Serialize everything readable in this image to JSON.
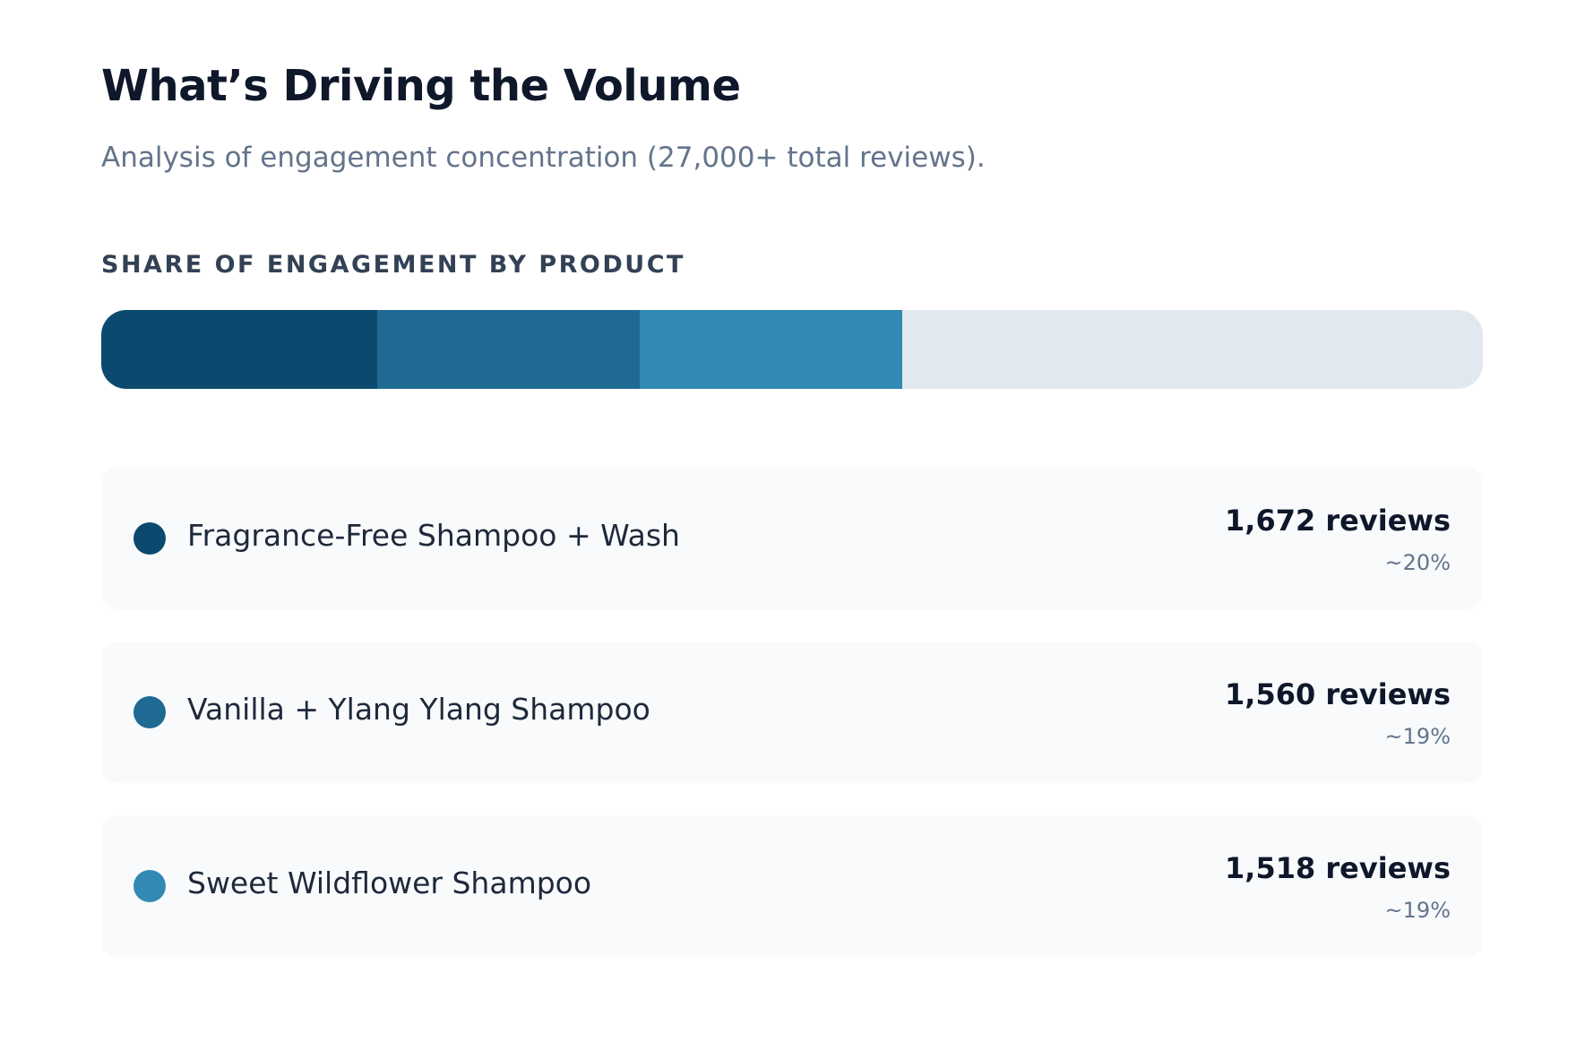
{
  "header": {
    "title": "What’s Driving the Volume",
    "subtitle": "Analysis of engagement concentration (27,000+ total reviews)."
  },
  "chart_data": {
    "type": "stacked-bar",
    "title": "SHARE OF ENGAGEMENT BY PRODUCT",
    "xlim": [
      0,
      100
    ],
    "track_color": "#e2e8f0",
    "items": [
      {
        "name": "Fragrance-Free Shampoo + Wash",
        "color": "#0b4a6e",
        "share": 20,
        "share_label": "~20%",
        "reviews_label": "1,672 reviews"
      },
      {
        "name": "Vanilla + Ylang Ylang Shampoo",
        "color": "#1e6a93",
        "share": 19,
        "share_label": "~19%",
        "reviews_label": "1,560 reviews"
      },
      {
        "name": "Sweet Wildflower Shampoo",
        "color": "#3189b4",
        "share": 19,
        "share_label": "~19%",
        "reviews_label": "1,518 reviews"
      }
    ]
  }
}
